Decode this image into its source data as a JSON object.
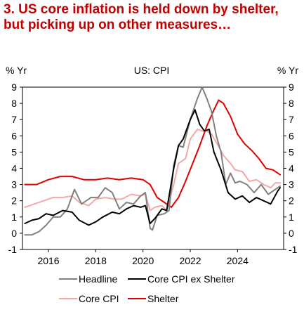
{
  "title": "3. US core inflation is held down by shelter, but picking up on other measures…",
  "chart_data": {
    "type": "line",
    "title": "US: CPI",
    "ylabel_left": "% Yr",
    "ylabel_right": "% Yr",
    "xlim": [
      2014.9,
      2025.95
    ],
    "ylim": [
      -1,
      9
    ],
    "yticks": [
      -1,
      0,
      1,
      2,
      3,
      4,
      5,
      6,
      7,
      8,
      9
    ],
    "xticks": [
      2016,
      2018,
      2020,
      2022,
      2024
    ],
    "xtick_labels": [
      "2016",
      "2018",
      "2020",
      "2022",
      "2024"
    ],
    "grid": false,
    "legend_position": "bottom",
    "series": [
      {
        "name": "Headline",
        "color": "#808080",
        "x": [
          2015.0,
          2015.3,
          2015.6,
          2015.9,
          2016.2,
          2016.5,
          2016.8,
          2017.1,
          2017.4,
          2017.8,
          2018.1,
          2018.4,
          2018.7,
          2019.0,
          2019.3,
          2019.6,
          2019.9,
          2020.1,
          2020.3,
          2020.4,
          2020.6,
          2020.9,
          2021.1,
          2021.3,
          2021.5,
          2021.7,
          2022.0,
          2022.3,
          2022.5,
          2022.7,
          2022.9,
          2023.1,
          2023.3,
          2023.5,
          2023.7,
          2023.9,
          2024.1,
          2024.4,
          2024.7,
          2025.0,
          2025.3,
          2025.6,
          2025.8
        ],
        "y": [
          -0.1,
          -0.1,
          0.1,
          0.5,
          1.0,
          1.0,
          1.5,
          2.7,
          1.8,
          2.2,
          2.2,
          2.8,
          2.5,
          1.5,
          1.9,
          1.8,
          2.3,
          2.5,
          0.3,
          0.2,
          1.1,
          1.2,
          1.4,
          4.2,
          5.4,
          5.3,
          7.0,
          8.3,
          9.0,
          8.3,
          7.5,
          6.0,
          5.0,
          3.0,
          3.7,
          3.1,
          3.2,
          3.0,
          2.5,
          3.0,
          2.4,
          2.7,
          2.9
        ]
      },
      {
        "name": "Core CPI ex Shelter",
        "color": "#000000",
        "x": [
          2015.0,
          2015.3,
          2015.6,
          2015.9,
          2016.2,
          2016.6,
          2017.0,
          2017.3,
          2017.7,
          2018.0,
          2018.3,
          2018.7,
          2019.0,
          2019.3,
          2019.6,
          2019.9,
          2020.1,
          2020.3,
          2020.5,
          2020.8,
          2021.0,
          2021.3,
          2021.5,
          2021.7,
          2022.0,
          2022.2,
          2022.4,
          2022.6,
          2022.8,
          2023.0,
          2023.3,
          2023.6,
          2023.9,
          2024.2,
          2024.5,
          2024.8,
          2025.1,
          2025.4,
          2025.7,
          2025.8
        ],
        "y": [
          0.6,
          0.8,
          0.9,
          1.2,
          1.1,
          1.4,
          1.3,
          0.8,
          0.5,
          0.7,
          1.0,
          1.3,
          1.2,
          1.5,
          1.7,
          1.6,
          1.7,
          0.6,
          0.9,
          1.5,
          1.4,
          4.0,
          5.4,
          5.8,
          7.0,
          7.6,
          6.7,
          6.3,
          6.4,
          5.0,
          3.9,
          2.5,
          2.1,
          2.3,
          1.9,
          2.2,
          2.0,
          1.8,
          2.6,
          2.8
        ]
      },
      {
        "name": "Core CPI",
        "color": "#f4a8a8",
        "x": [
          2015.0,
          2015.4,
          2015.8,
          2016.2,
          2016.6,
          2017.0,
          2017.3,
          2017.7,
          2018.0,
          2018.4,
          2018.8,
          2019.1,
          2019.5,
          2019.9,
          2020.1,
          2020.3,
          2020.5,
          2020.8,
          2021.0,
          2021.3,
          2021.5,
          2021.8,
          2022.0,
          2022.3,
          2022.5,
          2022.7,
          2022.9,
          2023.1,
          2023.4,
          2023.7,
          2023.9,
          2024.2,
          2024.5,
          2024.8,
          2025.1,
          2025.4,
          2025.6,
          2025.8
        ],
        "y": [
          1.6,
          1.8,
          2.0,
          2.2,
          2.2,
          2.3,
          1.9,
          1.7,
          2.1,
          2.2,
          2.1,
          2.1,
          2.4,
          2.3,
          2.4,
          1.4,
          1.6,
          1.7,
          1.4,
          3.0,
          4.3,
          4.6,
          5.8,
          6.4,
          6.3,
          6.3,
          6.1,
          5.6,
          4.8,
          4.3,
          3.9,
          3.8,
          3.2,
          3.3,
          3.0,
          2.8,
          3.1,
          3.1
        ]
      },
      {
        "name": "Shelter",
        "color": "#e00000",
        "x": [
          2015.0,
          2015.5,
          2016.0,
          2016.5,
          2017.0,
          2017.5,
          2018.0,
          2018.5,
          2019.0,
          2019.5,
          2020.0,
          2020.3,
          2020.6,
          2020.9,
          2021.2,
          2021.5,
          2021.8,
          2022.1,
          2022.4,
          2022.7,
          2023.0,
          2023.2,
          2023.4,
          2023.7,
          2024.0,
          2024.3,
          2024.6,
          2024.9,
          2025.2,
          2025.5,
          2025.8
        ],
        "y": [
          3.0,
          3.0,
          3.3,
          3.5,
          3.5,
          3.3,
          3.3,
          3.4,
          3.3,
          3.4,
          3.3,
          3.0,
          2.2,
          1.9,
          1.6,
          2.2,
          3.2,
          4.3,
          5.4,
          6.6,
          7.6,
          8.2,
          8.0,
          7.2,
          6.1,
          5.5,
          5.1,
          4.6,
          4.0,
          3.9,
          3.6
        ]
      }
    ]
  }
}
